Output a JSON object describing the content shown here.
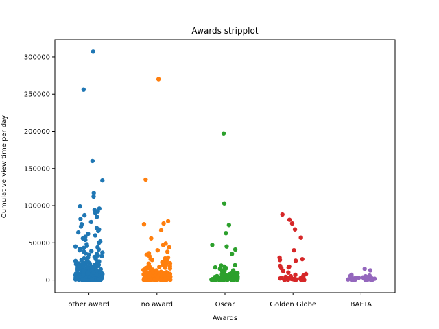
{
  "chart_data": {
    "type": "scatter",
    "subtype": "stripplot",
    "title": "Awards stripplot",
    "xlabel": "Awards",
    "ylabel": "Cumulative view time per day",
    "categories": [
      "other award",
      "no award",
      "Oscar",
      "Golden Globe",
      "BAFTA"
    ],
    "colors": [
      "#1f77b4",
      "#ff7f0e",
      "#2ca02c",
      "#d62728",
      "#9467bd"
    ],
    "ylim": [
      -17000,
      323000
    ],
    "yticks": [
      0,
      50000,
      100000,
      150000,
      200000,
      250000,
      300000
    ],
    "grid": false,
    "series": [
      {
        "values": [
          307000,
          256000,
          160000,
          134000,
          117000,
          112000,
          99000,
          96000,
          94000,
          92000,
          90000,
          87000,
          85000,
          82000,
          78000,
          75000,
          72000,
          70000,
          68000,
          66000,
          64000,
          62000,
          60000,
          58000,
          56000,
          54000,
          52000,
          50000,
          48000,
          46000,
          44000,
          42000,
          40000,
          38000,
          36000,
          34000,
          32000,
          30000,
          28000,
          27000,
          26000,
          25000,
          24000,
          23000,
          22000,
          21000,
          20000,
          19000,
          18000,
          17000,
          16000,
          15000,
          14000,
          13000,
          12000,
          11000,
          10000,
          9500,
          9000,
          8500,
          8000,
          7500,
          7000,
          6500,
          6000,
          5500,
          5000,
          4500,
          4000,
          3500,
          3000,
          2500,
          2000,
          1500,
          1000,
          500,
          0,
          200,
          400,
          600,
          800,
          1200,
          1800,
          2200,
          2800,
          3200,
          3800,
          4200,
          4800,
          5200,
          5800,
          6200,
          6800,
          7200,
          7800,
          8200,
          8800,
          9200,
          9800,
          10500,
          11500,
          12500,
          13500,
          14500,
          15500,
          16500,
          17500,
          18500,
          19500,
          20500,
          21500,
          22500,
          23500,
          24500,
          25500,
          29000,
          31000,
          33000,
          35000,
          37000,
          39000,
          41000,
          43000,
          45000,
          0,
          100,
          300,
          700,
          900,
          1100,
          1300,
          1700,
          2100,
          2600,
          3100,
          3600,
          4100,
          4600,
          5100,
          5600,
          6100,
          6600,
          7100,
          7600,
          8100,
          8600,
          9100,
          9600,
          0,
          50,
          150,
          250,
          350,
          450,
          550,
          650,
          750,
          850,
          950,
          1050,
          1150,
          1250,
          1350,
          1450,
          1600,
          1900,
          2300,
          2700,
          3300,
          3700,
          4300,
          4700,
          5300,
          5700,
          6300,
          6700,
          7300,
          7700,
          8300,
          8700,
          9300,
          9700,
          10200,
          11200,
          12200,
          13200,
          14200,
          15200,
          16200,
          17200,
          18200,
          19200,
          20200,
          21200,
          22200,
          23200,
          24200,
          0,
          0,
          0,
          0,
          0,
          100,
          200,
          300,
          400,
          500,
          600,
          700,
          800,
          900,
          1000,
          1500,
          2000,
          2500,
          3000,
          3500,
          4000,
          4500,
          5000,
          5500,
          6000,
          6500,
          7000,
          7500,
          8000,
          8500,
          9000,
          10000,
          11000,
          12000,
          13000,
          14000,
          15000
        ]
      },
      {
        "values": [
          270000,
          135000,
          79000,
          76000,
          75000,
          67000,
          56000,
          49000,
          47000,
          44000,
          40000,
          38000,
          36000,
          34000,
          32000,
          30000,
          29000,
          28000,
          27000,
          26000,
          25000,
          24000,
          23000,
          22000,
          21000,
          20000,
          19000,
          18000,
          17000,
          16000,
          15000,
          14000,
          13000,
          12000,
          11000,
          10000,
          9500,
          9000,
          8500,
          8000,
          7500,
          7000,
          6500,
          6000,
          5500,
          5000,
          4500,
          4000,
          3500,
          3000,
          2500,
          2000,
          1500,
          1000,
          500,
          0,
          200,
          400,
          600,
          800,
          1200,
          1800,
          2200,
          2800,
          3200,
          3800,
          4200,
          4800,
          5200,
          5800,
          6200,
          6800,
          7200,
          7800,
          8200,
          8800,
          9200,
          9800,
          10500,
          11500,
          12500,
          13500,
          14500,
          15500,
          16500,
          17500,
          18500,
          19500,
          20500,
          21500,
          22500,
          0,
          100,
          300,
          700,
          900,
          1100,
          1300,
          1700,
          2100,
          2600,
          3100,
          3600,
          4100,
          4600,
          5100,
          5600,
          6100,
          6600,
          7100,
          7600,
          8100,
          8600,
          9100,
          9600,
          0,
          50,
          150,
          250,
          350,
          450,
          550,
          650,
          750,
          850,
          950,
          1050,
          1150,
          1250,
          1350,
          1450,
          1600,
          1900,
          2300,
          2700,
          3300,
          3700,
          4300,
          4700,
          5300,
          5700,
          6300,
          6700,
          7300,
          7700,
          8300,
          8700,
          0,
          0,
          0,
          0,
          100,
          200,
          300,
          400,
          500,
          600,
          700,
          800,
          900,
          1000,
          1500,
          2000,
          2500,
          3000,
          3500,
          4000,
          4500,
          5000,
          5500,
          6000,
          6500,
          7000,
          7500,
          8000,
          9000,
          10000,
          11000,
          12000
        ]
      },
      {
        "values": [
          197000,
          103000,
          74000,
          63000,
          47000,
          45000,
          41000,
          35000,
          20000,
          19500,
          18000,
          17000,
          16000,
          15000,
          14000,
          13000,
          12000,
          11000,
          10000,
          9000,
          8000,
          7500,
          7000,
          6500,
          6000,
          5500,
          5000,
          4500,
          4000,
          3500,
          3000,
          2500,
          2000,
          1500,
          1000,
          500,
          0,
          200,
          400,
          600,
          800,
          1200,
          1800,
          2200,
          2800,
          3200,
          3800,
          4200,
          4800,
          5200,
          5800,
          6200,
          6800,
          7200,
          7800,
          8200,
          8800,
          9200,
          0,
          100,
          300,
          700,
          900,
          1100,
          1300,
          1700,
          2100,
          2600,
          3100,
          0,
          0,
          0,
          50,
          150,
          250,
          350,
          450,
          550
        ]
      },
      {
        "values": [
          88000,
          81000,
          76000,
          68000,
          57000,
          40000,
          30000,
          28000,
          27000,
          26000,
          19000,
          18000,
          17000,
          16000,
          12000,
          10000,
          8000,
          7000,
          6000,
          5000,
          4000,
          3000,
          2500,
          2000,
          1500,
          1000,
          500,
          0,
          200,
          400,
          600,
          800,
          1200,
          1800,
          2200,
          2800,
          3200,
          3800,
          4200,
          0,
          0,
          100,
          300
        ]
      },
      {
        "values": [
          15000,
          13000,
          7000,
          6000,
          5500,
          5000,
          4500,
          4000,
          3500,
          3000,
          2500,
          2000,
          1500,
          1000,
          500,
          0,
          200,
          400,
          600,
          800,
          1200,
          1800,
          2200,
          2800,
          3200,
          0,
          100
        ]
      }
    ]
  }
}
